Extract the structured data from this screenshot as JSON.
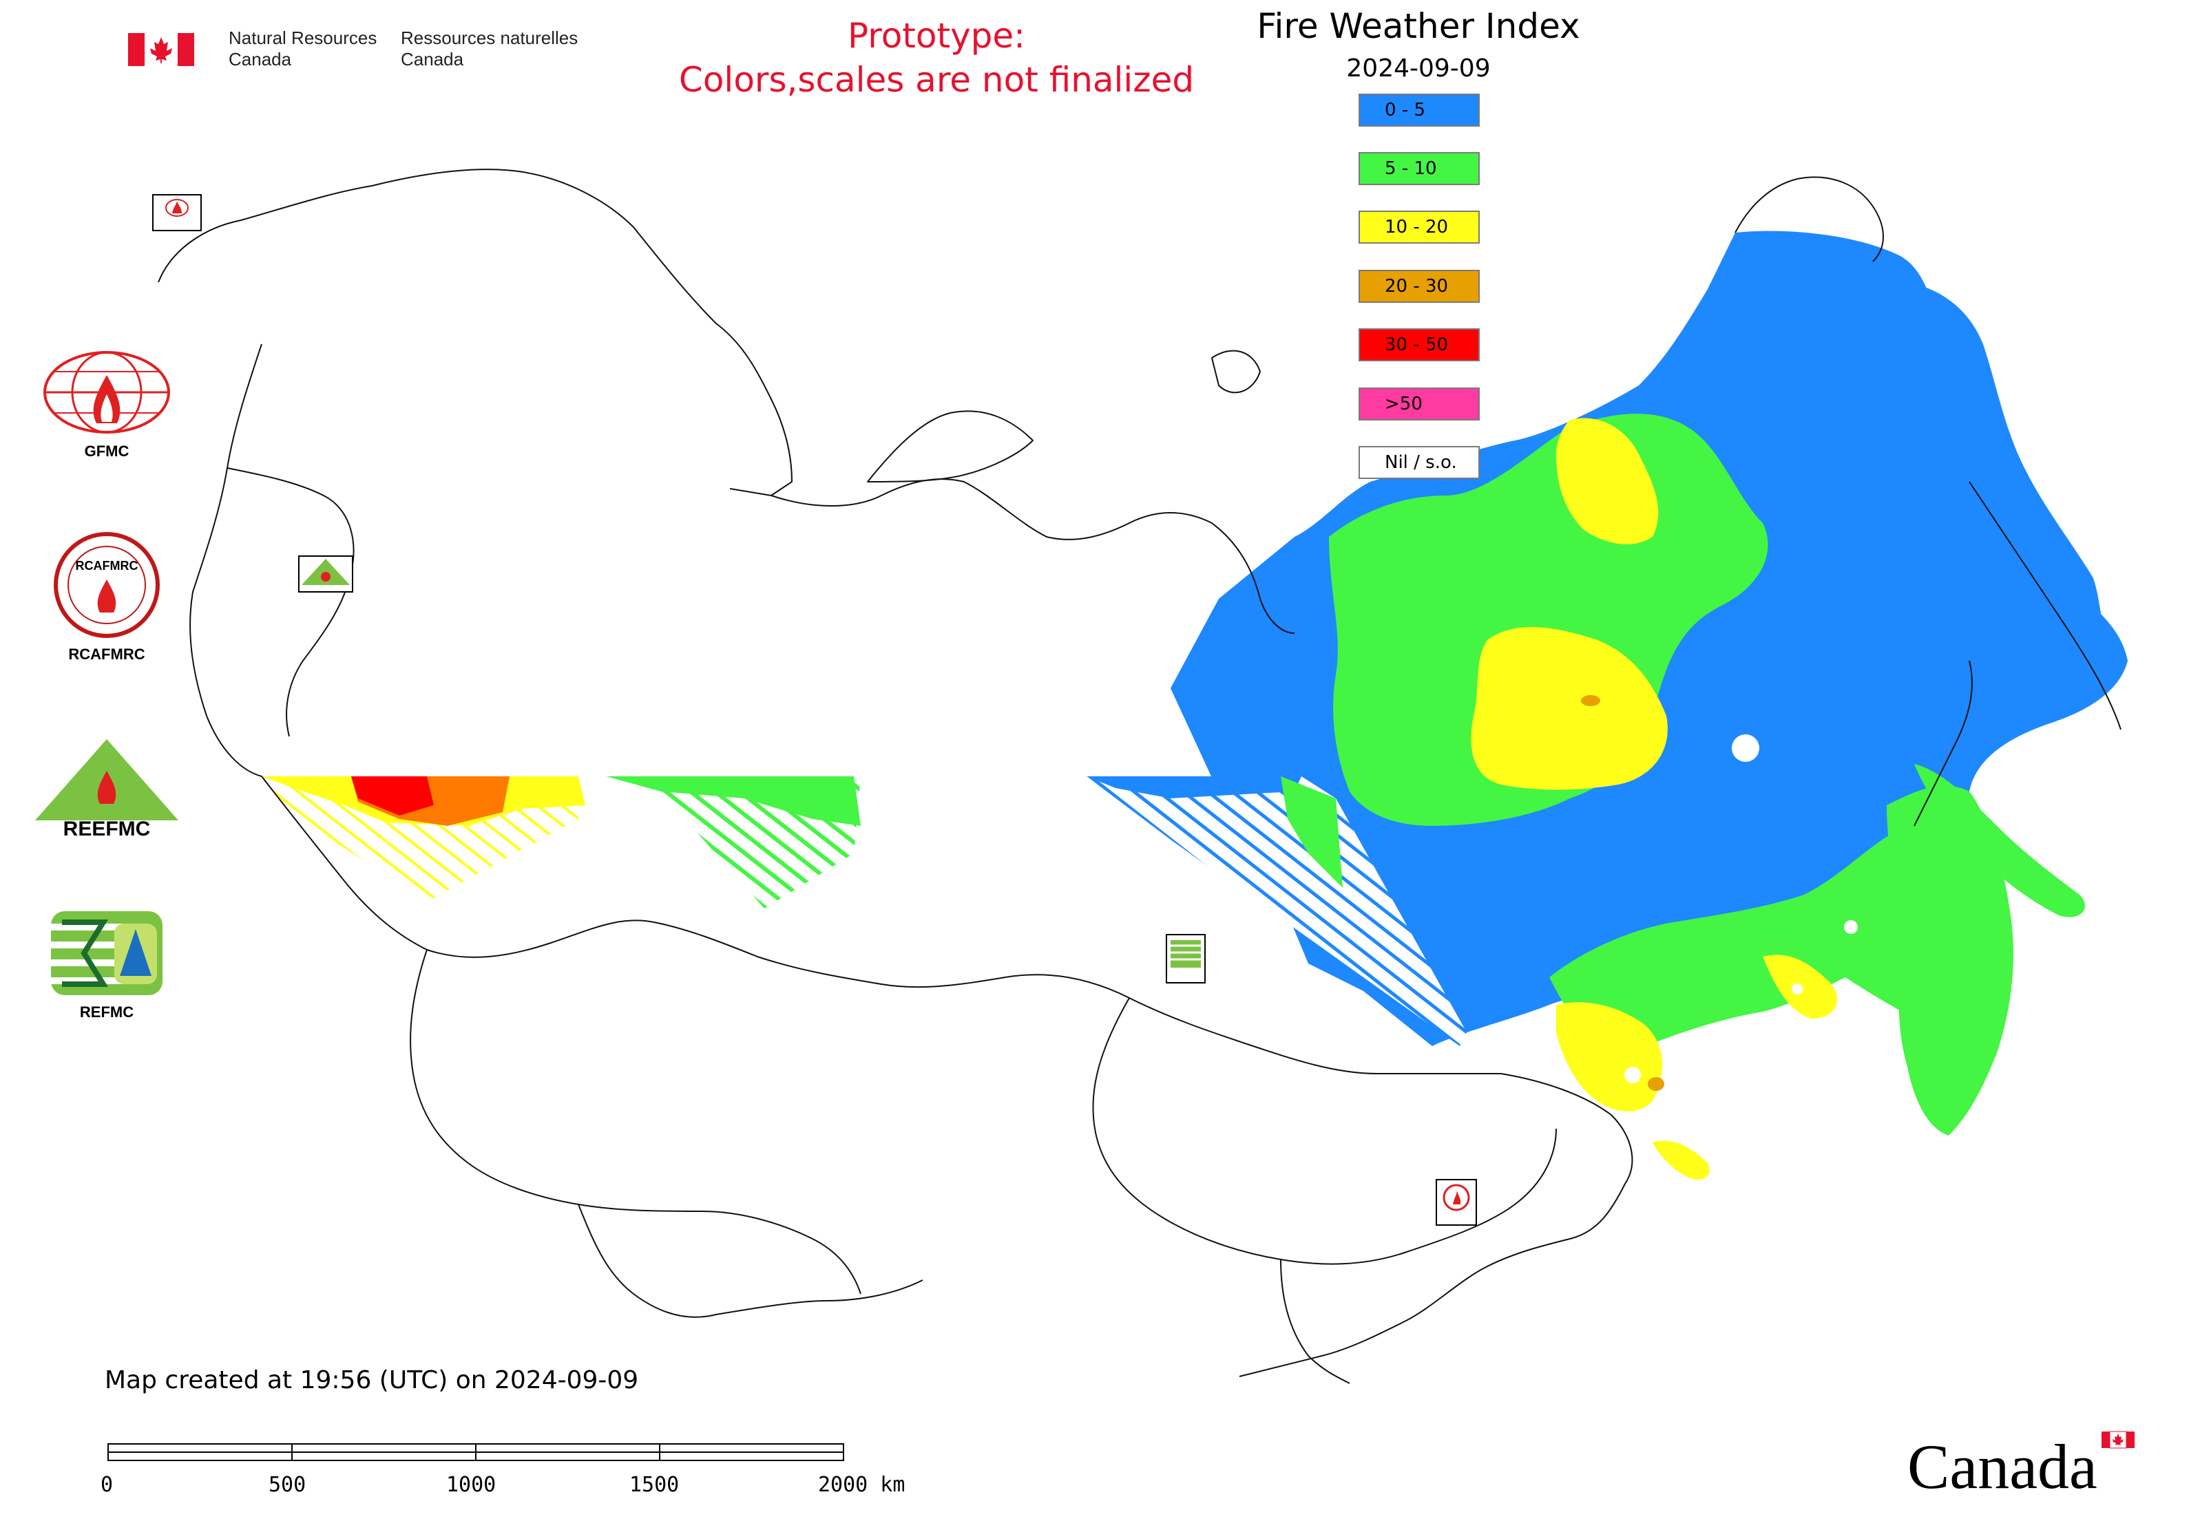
{
  "header": {
    "org_en_line1": "Natural Resources",
    "org_en_line2": "Canada",
    "org_fr_line1": "Ressources naturelles",
    "org_fr_line2": "Canada",
    "flag_icon": "canada-flag-icon"
  },
  "warning": {
    "line1": "Prototype:",
    "line2": "Colors,scales are not finalized",
    "color": "#e8112d"
  },
  "map": {
    "title": "Fire Weather Index",
    "date": "2024-09-09"
  },
  "legend": {
    "items": [
      {
        "label": "0 - 5",
        "color": "#1e88ff"
      },
      {
        "label": "5 - 10",
        "color": "#44f544"
      },
      {
        "label": "10 - 20",
        "color": "#ffff1a"
      },
      {
        "label": "20 - 30",
        "color": "#e6a000"
      },
      {
        "label": "30 - 50",
        "color": "#ff0000"
      },
      {
        "label": ">50",
        "color": "#ff3aa0"
      },
      {
        "label": "Nil / s.o.",
        "color": "#ffffff"
      }
    ]
  },
  "partners": [
    {
      "caption": "GFMC",
      "icon": "gfmc-logo-icon"
    },
    {
      "caption": "RCAFMRC",
      "icon": "rcafmrc-logo-icon"
    },
    {
      "caption": "",
      "icon": "reefmc-logo-icon",
      "logo_text": "REEFMC"
    },
    {
      "caption": "REFMC",
      "icon": "refmc-logo-icon"
    }
  ],
  "logo_texts": {
    "rcafmrc": "RCAFMRC",
    "map_rcafmrc": "RCAFMRC",
    "map_refmc": "REFMC",
    "map_gfmc": "GFMC",
    "map_reefmc": "REEFMC"
  },
  "footer": {
    "created": "Map created at 19:56 (UTC) on 2024-09-09",
    "scale": {
      "labels": [
        "0",
        "500",
        "1000",
        "1500",
        "2000 km"
      ]
    },
    "wordmark": "Canada"
  }
}
